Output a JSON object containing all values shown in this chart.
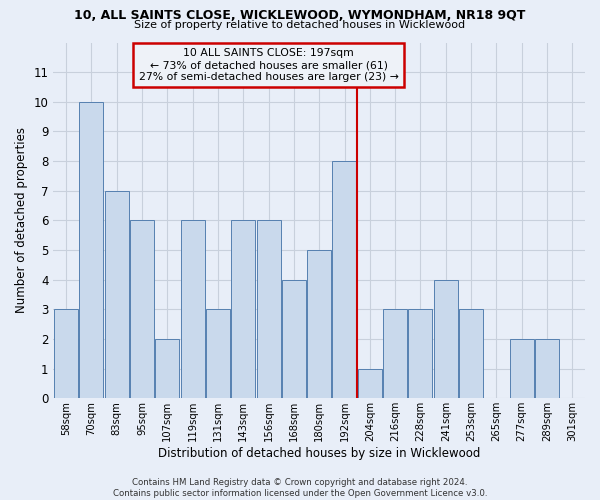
{
  "title_line1": "10, ALL SAINTS CLOSE, WICKLEWOOD, WYMONDHAM, NR18 9QT",
  "title_line2": "Size of property relative to detached houses in Wicklewood",
  "xlabel": "Distribution of detached houses by size in Wicklewood",
  "ylabel": "Number of detached properties",
  "footer_line1": "Contains HM Land Registry data © Crown copyright and database right 2024.",
  "footer_line2": "Contains public sector information licensed under the Open Government Licence v3.0.",
  "bar_labels": [
    "58sqm",
    "70sqm",
    "83sqm",
    "95sqm",
    "107sqm",
    "119sqm",
    "131sqm",
    "143sqm",
    "156sqm",
    "168sqm",
    "180sqm",
    "192sqm",
    "204sqm",
    "216sqm",
    "228sqm",
    "241sqm",
    "253sqm",
    "265sqm",
    "277sqm",
    "289sqm",
    "301sqm"
  ],
  "bar_values": [
    3,
    10,
    7,
    6,
    2,
    6,
    3,
    6,
    6,
    4,
    5,
    8,
    1,
    3,
    3,
    4,
    3,
    0,
    2,
    2,
    0
  ],
  "bar_color": "#c9d9ec",
  "bar_edge_color": "#5580b0",
  "highlight_index": 11,
  "highlight_line_color": "#cc0000",
  "grid_color": "#c8d0dc",
  "annotation_text": "10 ALL SAINTS CLOSE: 197sqm\n← 73% of detached houses are smaller (61)\n27% of semi-detached houses are larger (23) →",
  "annotation_box_color": "#cc0000",
  "annotation_box_bg": "#eef2f8",
  "ylim": [
    0,
    12
  ],
  "yticks": [
    0,
    1,
    2,
    3,
    4,
    5,
    6,
    7,
    8,
    9,
    10,
    11
  ],
  "background_color": "#e8eef8"
}
